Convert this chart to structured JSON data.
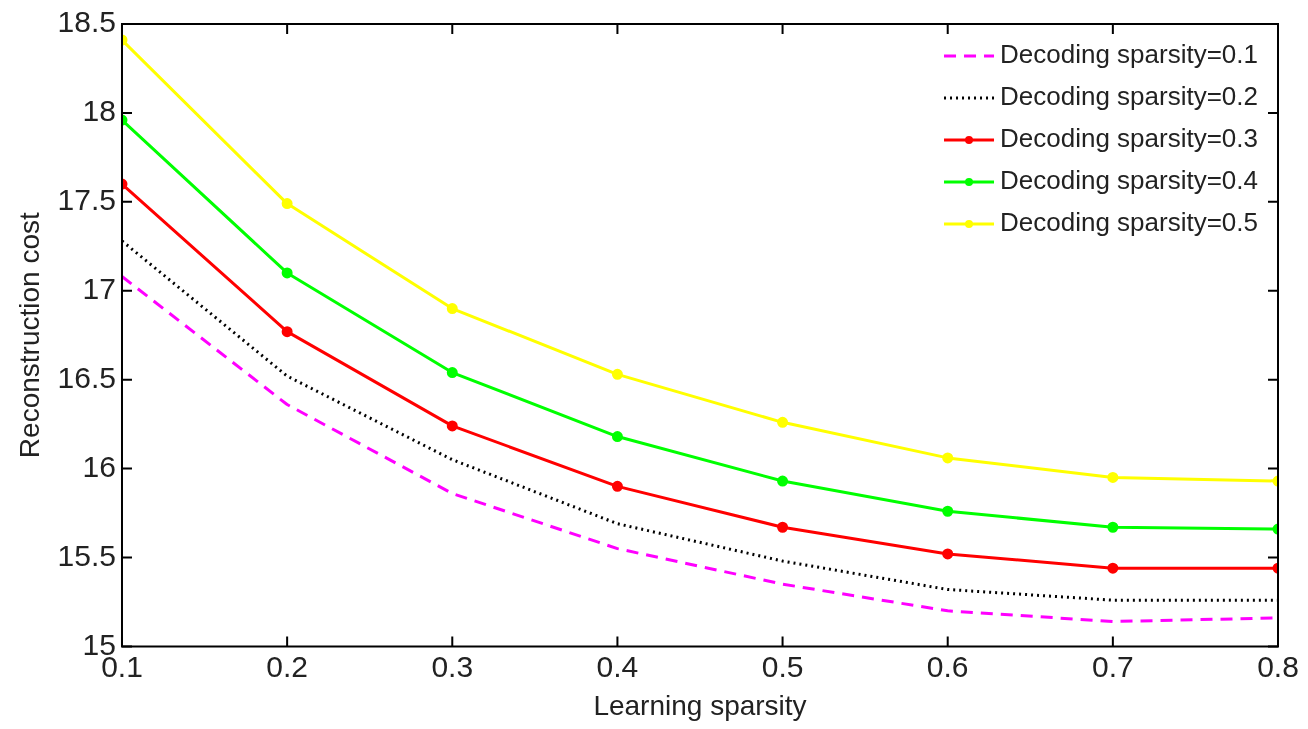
{
  "chart_data": {
    "type": "line",
    "xlabel": "Learning sparsity",
    "ylabel": "Reconstruction cost",
    "x": [
      0.1,
      0.2,
      0.3,
      0.4,
      0.5,
      0.6,
      0.7,
      0.8
    ],
    "xlim": [
      0.1,
      0.8
    ],
    "xticks": [
      0.1,
      0.2,
      0.3,
      0.4,
      0.5,
      0.6,
      0.7,
      0.8
    ],
    "ylim": [
      15,
      18.5
    ],
    "yticks": [
      15,
      15.5,
      16,
      16.5,
      17,
      17.5,
      18,
      18.5
    ],
    "grid": false,
    "legend": "top right",
    "series": [
      {
        "name": "Decoding sparsity=0.1",
        "color": "#ff00ff",
        "line_style": "dashed",
        "marker": "none",
        "values": [
          17.08,
          16.36,
          15.86,
          15.55,
          15.35,
          15.2,
          15.14,
          15.16
        ]
      },
      {
        "name": "Decoding sparsity=0.2",
        "color": "#000000",
        "line_style": "dotted",
        "marker": "none",
        "values": [
          17.28,
          16.52,
          16.05,
          15.69,
          15.48,
          15.32,
          15.26,
          15.26
        ]
      },
      {
        "name": "Decoding sparsity=0.3",
        "color": "#ff0000",
        "line_style": "solid",
        "marker": "circle",
        "values": [
          17.6,
          16.77,
          16.24,
          15.9,
          15.67,
          15.52,
          15.44,
          15.44
        ]
      },
      {
        "name": "Decoding sparsity=0.4",
        "color": "#00ff00",
        "line_style": "solid",
        "marker": "circle",
        "values": [
          17.96,
          17.1,
          16.54,
          16.18,
          15.93,
          15.76,
          15.67,
          15.66
        ]
      },
      {
        "name": "Decoding sparsity=0.5",
        "color": "#ffff00",
        "line_style": "solid",
        "marker": "circle",
        "values": [
          18.41,
          17.49,
          16.9,
          16.53,
          16.26,
          16.06,
          15.95,
          15.93
        ]
      }
    ]
  }
}
